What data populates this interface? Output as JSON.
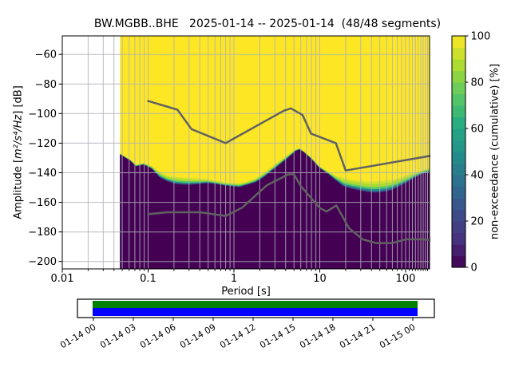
{
  "title": "BW.MGBB..BHE   2025-01-14 -- 2025-01-14  (48/48 segments)",
  "station_id": "BW.MGBB..BHE",
  "date_range": "2025-01-14 -- 2025-01-14",
  "segments": "48/48 segments",
  "ylabel": {
    "prefix": "Amplitude [",
    "math": "m²/s⁴/Hz",
    "suffix": "] [dB]"
  },
  "chart_data": {
    "type": "heatmap",
    "title": "BW.MGBB..BHE   2025-01-14 -- 2025-01-14  (48/48 segments)",
    "xlabel": "Period [s]",
    "ylabel": "Amplitude [m²/s⁴/Hz] [dB]",
    "x_scale": "log",
    "xlim": [
      0.01,
      190
    ],
    "ylim": [
      -205,
      -47.5
    ],
    "grid": true,
    "x_major_ticks": [
      0.01,
      0.1,
      1,
      10,
      100
    ],
    "x_tick_labels": [
      "0.01",
      "0.1",
      "1",
      "10",
      "100"
    ],
    "y_major_ticks": [
      -60,
      -80,
      -100,
      -120,
      -140,
      -160,
      -180,
      -200
    ],
    "y_tick_labels": [
      "−60",
      "−80",
      "−100",
      "−120",
      "−140",
      "−160",
      "−180",
      "−200"
    ],
    "colorbar": {
      "label": "non-exceedance (cumulative) [%]",
      "ticks": [
        0,
        20,
        40,
        60,
        80,
        100
      ],
      "tick_labels": [
        "0",
        "20",
        "40",
        "60",
        "80",
        "100"
      ],
      "steps": 20,
      "position": "right"
    },
    "colormap_anchors": [
      "#440154",
      "#46327e",
      "#3b528b",
      "#2c728e",
      "#21918c",
      "#28ae80",
      "#5ec962",
      "#addc30",
      "#fde725"
    ],
    "distribution": {
      "comment": "cumulative non-exceedance mesh: above upper_db ~100% (yellow), below lower_db ~0% (purple)",
      "periods": [
        0.047,
        0.052,
        0.062,
        0.072,
        0.089,
        0.11,
        0.136,
        0.169,
        0.209,
        0.26,
        0.321,
        0.398,
        0.493,
        0.611,
        0.757,
        0.937,
        1.16,
        1.44,
        1.78,
        2.21,
        2.73,
        3.39,
        4.2,
        5.2,
        5.79,
        6.44,
        7.98,
        9.89,
        12.3,
        15.2,
        18.8,
        23.3,
        28.8,
        35.7,
        44.3,
        54.9,
        68.0,
        84.3,
        104,
        129,
        160,
        190
      ],
      "upper_db": [
        -127.0,
        -128.1,
        -130.8,
        -134.1,
        -133.0,
        -135.1,
        -138.4,
        -141.1,
        -141.6,
        -142.2,
        -142.7,
        -143.2,
        -143.8,
        -144.9,
        -145.9,
        -146.5,
        -146.5,
        -145.4,
        -143.2,
        -139.5,
        -135.7,
        -131.4,
        -127.6,
        -123.8,
        -123.2,
        -124.9,
        -129.2,
        -135.1,
        -138.4,
        -141.1,
        -142.2,
        -143.2,
        -143.8,
        -144.3,
        -144.3,
        -143.8,
        -143.2,
        -142.2,
        -140.5,
        -138.9,
        -137.3,
        -136.2
      ],
      "lower_db": [
        -127.6,
        -129.2,
        -131.9,
        -135.7,
        -134.6,
        -137.3,
        -143.2,
        -145.9,
        -147.6,
        -148.1,
        -148.1,
        -147.6,
        -147.0,
        -147.6,
        -148.6,
        -149.2,
        -149.7,
        -148.1,
        -146.5,
        -143.2,
        -138.9,
        -134.6,
        -130.3,
        -125.4,
        -124.3,
        -125.9,
        -130.8,
        -136.8,
        -140.5,
        -144.9,
        -149.2,
        -150.8,
        -151.9,
        -153.0,
        -153.5,
        -153.0,
        -151.9,
        -149.2,
        -146.5,
        -143.2,
        -140.5,
        -139.5
      ],
      "fringe_layers": [
        {
          "t": 0.94,
          "f": 0.18
        },
        {
          "t": 0.875,
          "f": 0.36
        },
        {
          "t": 0.75,
          "f": 0.58
        },
        {
          "t": 0.5,
          "f": 0.74
        },
        {
          "t": 0.3,
          "f": 0.86
        },
        {
          "t": 0.125,
          "f": 0.95
        },
        {
          "t": 0.0,
          "f": 1.0
        }
      ]
    },
    "noise_models": {
      "color": "#616161",
      "nhnm": {
        "periods": [
          0.1,
          0.22,
          0.32,
          0.8,
          3.8,
          4.6,
          6.3,
          7.9,
          15.4,
          20.0,
          190.0
        ],
        "db": [
          -91.5,
          -97.4,
          -110.5,
          -120.0,
          -98.1,
          -96.5,
          -101.0,
          -113.5,
          -120.0,
          -138.5,
          -128.7
        ]
      },
      "nlnm": {
        "periods": [
          0.1,
          0.17,
          0.4,
          0.8,
          1.24,
          2.4,
          4.3,
          5.0,
          6.0,
          10.0,
          12.0,
          15.6,
          21.9,
          31.6,
          45.0,
          70.0,
          101.0,
          154.0,
          190.0
        ],
        "db": [
          -168.0,
          -166.7,
          -166.7,
          -169.2,
          -163.7,
          -148.6,
          -141.1,
          -141.1,
          -149.0,
          -163.8,
          -166.2,
          -162.1,
          -177.5,
          -185.0,
          -187.5,
          -187.5,
          -185.0,
          -185.0,
          -185.5
        ]
      }
    }
  },
  "timeline": {
    "tick_labels": [
      "01-14 00",
      "01-14 03",
      "01-14 06",
      "01-14 09",
      "01-14 12",
      "01-14 15",
      "01-14 18",
      "01-14 21",
      "01-15 00"
    ],
    "coverage": {
      "top_color": "#008000",
      "bottom_color": "#0000ff"
    }
  }
}
